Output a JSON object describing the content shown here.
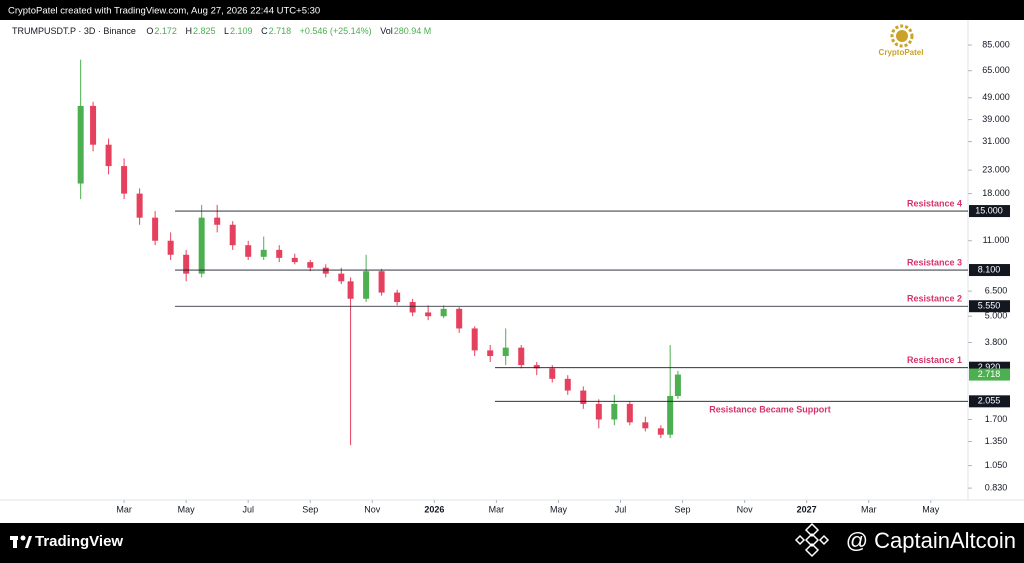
{
  "top_bar": "CryptoPatel created with TradingView.com, Aug 27, 2026 22:44 UTC+5:30",
  "logo_text": "CryptoPatel",
  "footer_brand": "TradingView",
  "watermark": "@ CaptainAltcoin",
  "chart_data": {
    "type": "candlestick",
    "symbol": "TRUMPUSDT.P · 3D · Binance",
    "header": {
      "open_label": "O",
      "high_label": "H",
      "low_label": "L",
      "close_label": "C",
      "change": "+0.546 (+25.14%)",
      "volume_label": "Vol",
      "volume": "280.94 M"
    },
    "up_color": "#4caf50",
    "down_color": "#e5405e",
    "log_scale": true,
    "x": [
      0.6,
      1.0,
      1.5,
      2.0,
      2.5,
      3.0,
      3.5,
      4.0,
      4.5,
      5.0,
      5.5,
      6.0,
      6.5,
      7.0,
      7.5,
      8.0,
      8.5,
      9.0,
      9.3,
      9.8,
      10.3,
      10.8,
      11.3,
      11.8,
      12.3,
      12.8,
      13.3,
      13.8,
      14.3,
      14.8,
      15.3,
      15.8,
      16.3,
      16.8,
      17.3,
      17.8,
      18.3,
      18.8,
      19.3,
      19.6,
      19.85
    ],
    "open": [
      20,
      45,
      30,
      24,
      18,
      14,
      11,
      9.5,
      7.8,
      14,
      13,
      10.5,
      9.3,
      10,
      9.2,
      8.8,
      8.3,
      7.8,
      7.2,
      6.0,
      8.0,
      6.4,
      5.8,
      5.2,
      5.0,
      5.4,
      4.4,
      3.5,
      3.3,
      3.6,
      3.0,
      2.9,
      2.6,
      2.3,
      2.0,
      1.7,
      2.0,
      1.65,
      1.55,
      1.45,
      2.172
    ],
    "high": [
      73,
      47,
      32,
      26,
      19,
      15,
      12,
      10,
      16,
      16,
      13.5,
      11,
      11.5,
      10.5,
      9.6,
      9.0,
      8.6,
      8.3,
      7.5,
      9.5,
      8.2,
      6.6,
      6.0,
      5.6,
      5.6,
      5.5,
      4.5,
      3.7,
      4.4,
      3.7,
      3.1,
      3.0,
      2.7,
      2.4,
      2.1,
      2.2,
      2.05,
      1.75,
      1.6,
      3.7,
      2.825
    ],
    "low": [
      17,
      28,
      22,
      17,
      13,
      10.5,
      9,
      7.2,
      7.5,
      12,
      10,
      9,
      9,
      8.8,
      8.6,
      8.0,
      7.5,
      7.0,
      1.3,
      5.8,
      6.2,
      5.6,
      5.0,
      4.8,
      4.9,
      4.2,
      3.3,
      3.1,
      3.0,
      2.9,
      2.7,
      2.5,
      2.2,
      1.9,
      1.55,
      1.6,
      1.6,
      1.5,
      1.4,
      1.4,
      2.109
    ],
    "close": [
      45,
      30,
      24,
      18,
      14,
      11,
      9.5,
      7.8,
      14,
      13,
      10.5,
      9.3,
      10,
      9.2,
      8.8,
      8.3,
      7.8,
      7.2,
      6.0,
      8.0,
      6.4,
      5.8,
      5.2,
      5.0,
      5.4,
      4.4,
      3.5,
      3.3,
      3.6,
      3.0,
      2.9,
      2.6,
      2.3,
      2.0,
      1.7,
      2.0,
      1.65,
      1.55,
      1.45,
      2.172,
      2.718
    ],
    "xlim": [
      -2,
      29.2
    ],
    "xticks": [
      {
        "value": 2,
        "label": "Mar"
      },
      {
        "value": 4,
        "label": "May"
      },
      {
        "value": 6,
        "label": "Jul"
      },
      {
        "value": 8,
        "label": "Sep"
      },
      {
        "value": 10,
        "label": "Nov"
      },
      {
        "value": 12,
        "label": "2026"
      },
      {
        "value": 14,
        "label": "Mar"
      },
      {
        "value": 16,
        "label": "May"
      },
      {
        "value": 18,
        "label": "Jul"
      },
      {
        "value": 20,
        "label": "Sep"
      },
      {
        "value": 22,
        "label": "Nov"
      },
      {
        "value": 24,
        "label": "2027"
      },
      {
        "value": 26,
        "label": "Mar"
      },
      {
        "value": 28,
        "label": "May"
      }
    ],
    "ylim": [
      0.733,
      110.4
    ],
    "yticks": [
      {
        "value": 85,
        "label": "85.000"
      },
      {
        "value": 65,
        "label": "65.000"
      },
      {
        "value": 49,
        "label": "49.000"
      },
      {
        "value": 39,
        "label": "39.000"
      },
      {
        "value": 31,
        "label": "31.000"
      },
      {
        "value": 23,
        "label": "23.000"
      },
      {
        "value": 18,
        "label": "18.000"
      },
      {
        "value": 11,
        "label": "11.000"
      },
      {
        "value": 6.5,
        "label": "6.500"
      },
      {
        "value": 5,
        "label": "5.000"
      },
      {
        "value": 3.8,
        "label": "3.800"
      },
      {
        "value": 1.7,
        "label": "1.700"
      },
      {
        "value": 1.35,
        "label": "1.350"
      },
      {
        "value": 1.05,
        "label": "1.050"
      },
      {
        "value": 0.83,
        "label": "0.830"
      }
    ],
    "levels": [
      {
        "name": "Resistance 4",
        "value": 15,
        "label": "15.000"
      },
      {
        "name": "Resistance 3",
        "value": 8.1,
        "label": "8.100"
      },
      {
        "name": "Resistance 2",
        "value": 5.55,
        "label": "5.550"
      },
      {
        "name": "Resistance 1",
        "value": 2.92,
        "label": "2.920"
      },
      {
        "name": "Resistance Became Support",
        "value": 2.055,
        "label": "2.055"
      }
    ]
  }
}
